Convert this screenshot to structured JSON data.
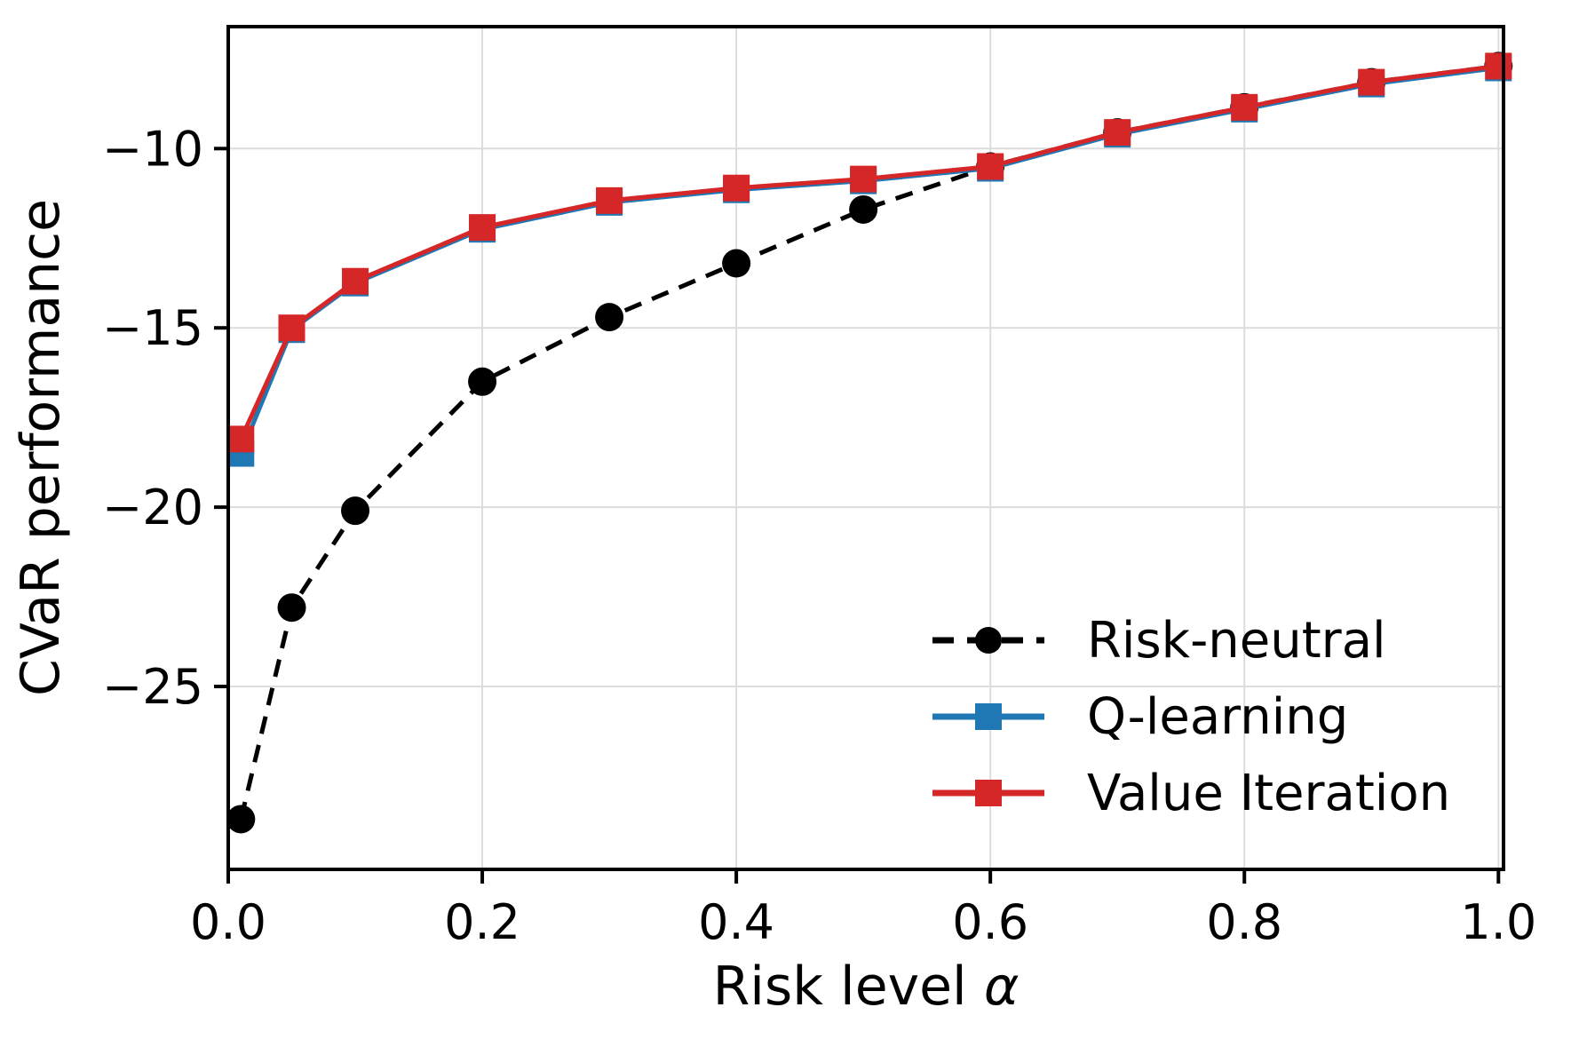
{
  "figure": {
    "xlabel_parts": {
      "text": "Risk level",
      "symbol": "α"
    }
  },
  "chart_data": {
    "type": "line",
    "title": "",
    "xlabel": "Risk level α",
    "ylabel": "CVaR performance",
    "x": [
      0.01,
      0.05,
      0.1,
      0.2,
      0.3,
      0.4,
      0.5,
      0.6,
      0.7,
      0.8,
      0.9,
      1.0
    ],
    "series": [
      {
        "name": "Risk-neutral",
        "color": "#000000",
        "linestyle": "dashed",
        "marker": "circle",
        "values": [
          -28.7,
          -22.8,
          -20.1,
          -16.5,
          -14.7,
          -13.2,
          -11.7,
          -10.5,
          -9.55,
          -8.85,
          -8.15,
          -7.7
        ]
      },
      {
        "name": "Q-learning",
        "color": "#1f77b4",
        "linestyle": "solid",
        "marker": "square",
        "values": [
          -18.5,
          -15.05,
          -13.75,
          -12.25,
          -11.5,
          -11.15,
          -10.9,
          -10.55,
          -9.6,
          -8.9,
          -8.2,
          -7.75
        ]
      },
      {
        "name": "Value Iteration",
        "color": "#d62728",
        "linestyle": "solid",
        "marker": "square",
        "values": [
          -18.1,
          -15.0,
          -13.7,
          -12.2,
          -11.45,
          -11.1,
          -10.85,
          -10.5,
          -9.55,
          -8.85,
          -8.15,
          -7.7
        ]
      }
    ],
    "xticks": [
      0.0,
      0.2,
      0.4,
      0.6,
      0.8,
      1.0
    ],
    "xtick_labels": [
      "0.0",
      "0.2",
      "0.4",
      "0.6",
      "0.8",
      "1.0"
    ],
    "yticks": [
      -10,
      -15,
      -20,
      -25
    ],
    "ytick_labels": [
      "−10",
      "−15",
      "−20",
      "−25"
    ],
    "xlim": [
      0.0,
      1.004
    ],
    "ylim": [
      -30.1,
      -6.6
    ],
    "grid": true,
    "grid_color": "#dcdcdc",
    "axis_color": "#000000",
    "legend_position": "lower right",
    "legend_frame": false
  }
}
